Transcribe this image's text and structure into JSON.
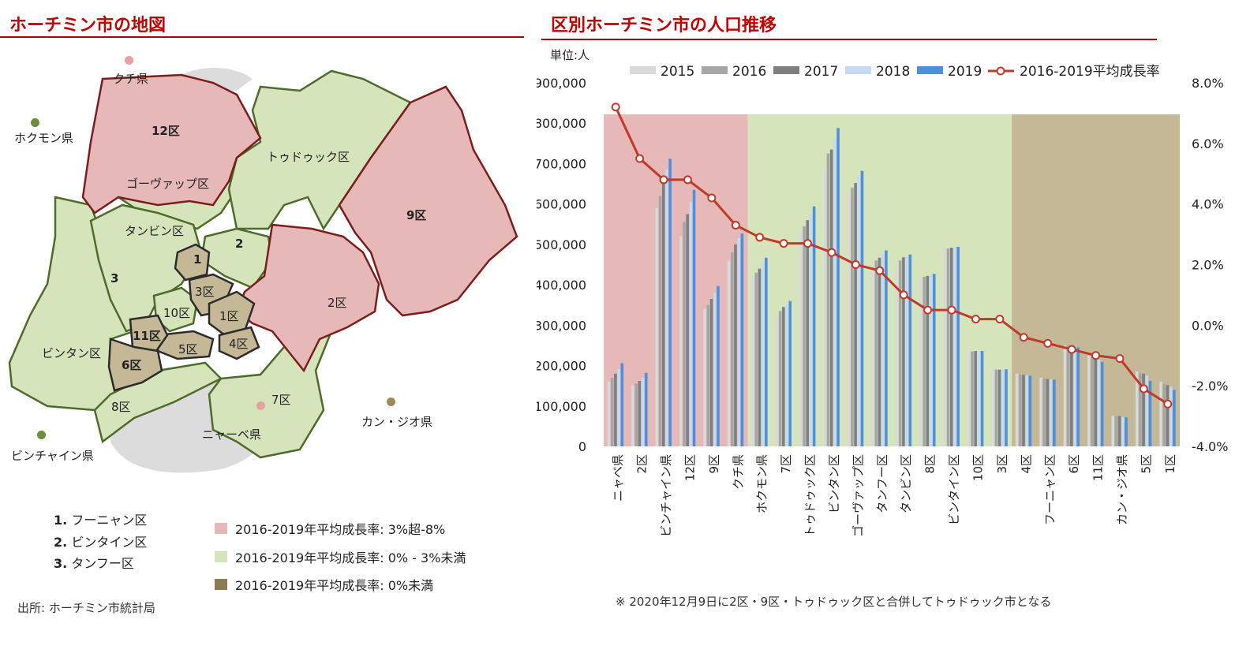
{
  "left_panel": {
    "title": "ホーチミン市の地図",
    "district_labels": {
      "d12": "12区",
      "thuduc": "トゥドゥック区",
      "govap": "ゴーヴァップ区",
      "tanbinh": "タンビン区",
      "d9": "9区",
      "dn2": "2",
      "dn3": "3",
      "dn1": "1",
      "d3": "3区",
      "d10": "10区",
      "d1": "1区",
      "d2": "2区",
      "d11": "11区",
      "d5": "5区",
      "d4": "4区",
      "d6": "6区",
      "binhtan": "ビンタン区",
      "d8": "8区",
      "d7": "7区",
      "nhabe": "ニャーベ県"
    },
    "provinces": {
      "cuchi": "クチ県",
      "hocmon": "ホクモン県",
      "binhchanh": "ビンチャイン県",
      "cangio": "カン・ジオ県"
    },
    "numbered_notes": [
      {
        "num": "1.",
        "text": "フーニャン区"
      },
      {
        "num": "2.",
        "text": "ビンタイン区"
      },
      {
        "num": "3.",
        "text": "タンフー区"
      }
    ],
    "legend": [
      {
        "color": "#e6b8b8",
        "text": "2016-2019年平均成長率: 3%超-8%"
      },
      {
        "color": "#d6e4bc",
        "text": "2016-2019年平均成長率: 0% - 3%未満"
      },
      {
        "color": "#8c7c52",
        "text": "2016-2019年平均成長率: 0%未満"
      }
    ],
    "source": "出所: ホーチミン市統計局"
  },
  "right_panel": {
    "title": "区別ホーチミン市の人口推移",
    "unit": "単位:人",
    "footnote": "※  2020年12月9日に2区・9区・トゥドゥック区と合併してトゥドゥック市となる"
  },
  "chart_data": {
    "type": "bar",
    "title": "区別ホーチミン市の人口推移",
    "ylabel": "単位:人",
    "ylim": [
      0,
      900000
    ],
    "y2lim": [
      -4.0,
      8.0
    ],
    "yticks": [
      "0",
      "100,000",
      "200,000",
      "300,000",
      "400,000",
      "500,000",
      "600,000",
      "700,000",
      "800,000",
      "900,000"
    ],
    "y2ticks": [
      "-4.0%",
      "-2.0%",
      "0.0%",
      "2.0%",
      "4.0%",
      "6.0%",
      "8.0%"
    ],
    "legend_position": "top",
    "categories": [
      "ニャベ県",
      "2区",
      "ビンチャイン県",
      "12区",
      "9区",
      "クチ県",
      "ホクモン県",
      "7区",
      "トゥドゥック区",
      "ビンタン区",
      "ゴーヴァップ区",
      "タンフー区",
      "タンビン区",
      "8区",
      "ビンタイン区",
      "10区",
      "3区",
      "4区",
      "フーニャン区",
      "6区",
      "11区",
      "カン・ジオ県",
      "5区",
      "1区"
    ],
    "series": [
      {
        "name": "2015",
        "color": "#d9d9d9",
        "values": [
          160000,
          150000,
          590000,
          520000,
          340000,
          460000,
          420000,
          320000,
          530000,
          690000,
          630000,
          450000,
          450000,
          420000,
          490000,
          235000,
          190000,
          180000,
          170000,
          250000,
          225000,
          75000,
          185000,
          160000
        ]
      },
      {
        "name": "2016",
        "color": "#a6a6a6",
        "values": [
          170000,
          155000,
          620000,
          555000,
          350000,
          480000,
          430000,
          335000,
          545000,
          725000,
          640000,
          460000,
          460000,
          420000,
          490000,
          235000,
          190000,
          178000,
          168000,
          250000,
          222000,
          75000,
          182000,
          155000
        ]
      },
      {
        "name": "2017",
        "color": "#7f7f7f",
        "values": [
          180000,
          162000,
          650000,
          575000,
          365000,
          500000,
          440000,
          345000,
          560000,
          735000,
          652000,
          467000,
          468000,
          422000,
          492000,
          236000,
          190000,
          177000,
          167000,
          249000,
          220000,
          75000,
          180000,
          152000
        ]
      },
      {
        "name": "2018",
        "color": "#c5d9f1",
        "values": [
          192000,
          170000,
          685000,
          605000,
          380000,
          515000,
          455000,
          352000,
          575000,
          760000,
          668000,
          475000,
          470000,
          425000,
          493000,
          236000,
          190000,
          176000,
          166000,
          247000,
          215000,
          73000,
          175000,
          148000
        ]
      },
      {
        "name": "2019",
        "color": "#4f8fdb",
        "values": [
          206000,
          182000,
          712000,
          635000,
          397000,
          527000,
          467000,
          360000,
          594000,
          788000,
          682000,
          485000,
          475000,
          427000,
          494000,
          236000,
          191000,
          175000,
          165000,
          245000,
          209000,
          72000,
          162000,
          140000
        ]
      }
    ],
    "line_series": {
      "name": "2016-2019平均成長率",
      "color": "#c0392b",
      "axis": "right",
      "values": [
        7.2,
        5.5,
        4.8,
        4.8,
        4.2,
        3.3,
        2.9,
        2.7,
        2.7,
        2.4,
        2.0,
        1.8,
        1.0,
        0.5,
        0.5,
        0.2,
        0.2,
        -0.4,
        -0.6,
        -0.8,
        -1.0,
        -1.1,
        -2.1,
        -2.6
      ]
    },
    "background_bands": [
      {
        "from": 0,
        "to": 5,
        "color": "#e6b8b8"
      },
      {
        "from": 6,
        "to": 16,
        "color": "#d6e4bc"
      },
      {
        "from": 17,
        "to": 23,
        "color": "#c4b896"
      }
    ]
  }
}
